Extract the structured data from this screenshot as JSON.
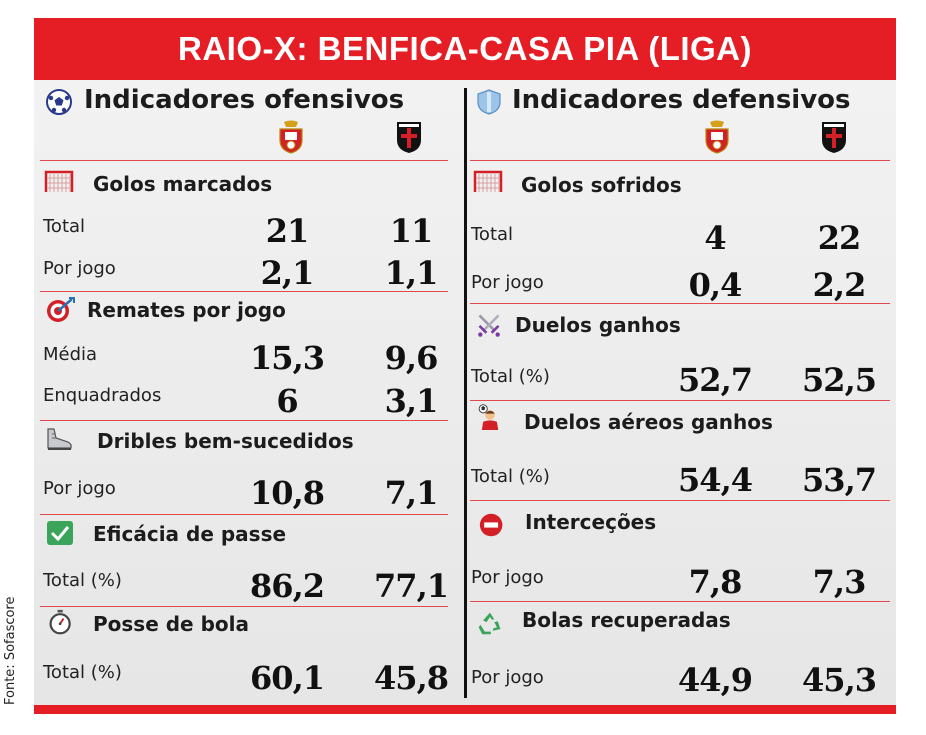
{
  "title": "RAIO-X: BENFICA-CASA PIA (LIGA)",
  "source": "Fonte: Sofascore",
  "colors": {
    "accent": "#e51e26",
    "divider": "#e04a4a",
    "text": "#1a1a1a"
  },
  "teams": [
    {
      "name": "Benfica",
      "icon": "benfica-crest-icon"
    },
    {
      "name": "Casa Pia",
      "icon": "casa-pia-crest-icon"
    }
  ],
  "offensive": {
    "heading": "Indicadores ofensivos",
    "icon": "soccer-ball-icon",
    "categories": [
      {
        "title": "Golos marcados",
        "icon": "goal-net-icon",
        "rows": [
          {
            "label": "Total",
            "values": [
              "21",
              "11"
            ]
          },
          {
            "label": "Por jogo",
            "values": [
              "2,1",
              "1,1"
            ]
          }
        ]
      },
      {
        "title": "Remates por jogo",
        "icon": "target-icon",
        "rows": [
          {
            "label": "Média",
            "values": [
              "15,3",
              "9,6"
            ]
          },
          {
            "label": "Enquadrados",
            "values": [
              "6",
              "3,1"
            ]
          }
        ]
      },
      {
        "title": "Dribles bem-sucedidos",
        "icon": "boot-icon",
        "rows": [
          {
            "label": "Por jogo",
            "values": [
              "10,8",
              "7,1"
            ]
          }
        ]
      },
      {
        "title": "Eficácia de passe",
        "icon": "checkbox-icon",
        "rows": [
          {
            "label": "Total (%)",
            "values": [
              "86,2",
              "77,1"
            ]
          }
        ]
      },
      {
        "title": "Posse de bola",
        "icon": "stopwatch-icon",
        "rows": [
          {
            "label": "Total (%)",
            "values": [
              "60,1",
              "45,8"
            ]
          }
        ]
      }
    ]
  },
  "defensive": {
    "heading": "Indicadores defensivos",
    "icon": "shield-icon",
    "categories": [
      {
        "title": "Golos sofridos",
        "icon": "goal-net-icon",
        "rows": [
          {
            "label": "Total",
            "values": [
              "4",
              "22"
            ]
          },
          {
            "label": "Por jogo",
            "values": [
              "0,4",
              "2,2"
            ]
          }
        ]
      },
      {
        "title": "Duelos ganhos",
        "icon": "crossed-swords-icon",
        "rows": [
          {
            "label": "Total (%)",
            "values": [
              "52,7",
              "52,5"
            ]
          }
        ]
      },
      {
        "title": "Duelos aéreos ganhos",
        "icon": "header-player-icon",
        "rows": [
          {
            "label": "Total (%)",
            "values": [
              "54,4",
              "53,7"
            ]
          }
        ]
      },
      {
        "title": "Interceções",
        "icon": "no-entry-icon",
        "rows": [
          {
            "label": "Por jogo",
            "values": [
              "7,8",
              "7,3"
            ]
          }
        ]
      },
      {
        "title": "Bolas recuperadas",
        "icon": "recycle-icon",
        "rows": [
          {
            "label": "Por jogo",
            "values": [
              "44,9",
              "45,3"
            ]
          }
        ]
      }
    ]
  }
}
